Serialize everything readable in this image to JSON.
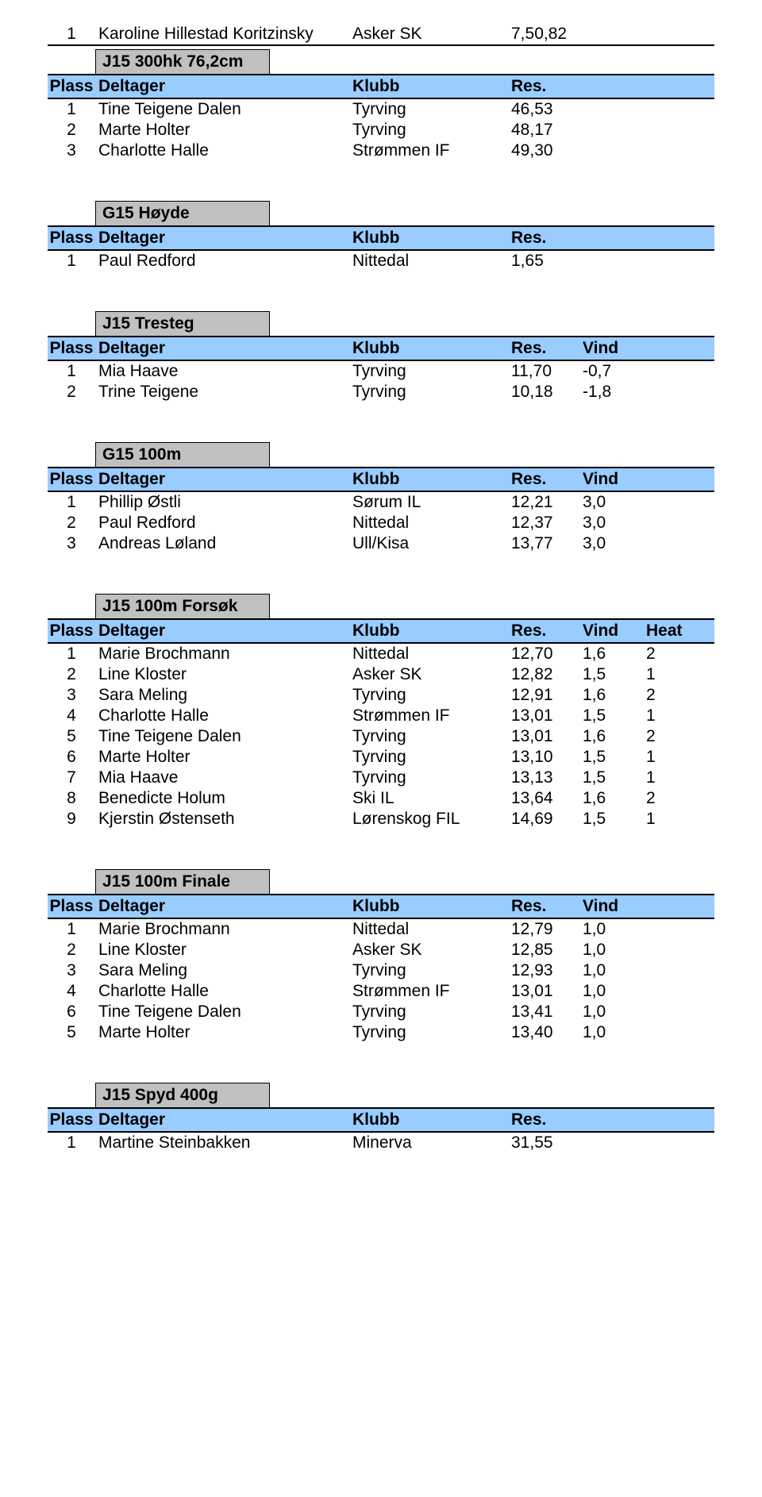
{
  "colors": {
    "header_bg": "#99ccff",
    "title_bg": "#c0c0c0",
    "border": "#000000",
    "text": "#000000",
    "page_bg": "#ffffff"
  },
  "font": {
    "family": "Arial",
    "size_pt": 16,
    "header_weight": "bold"
  },
  "labels": {
    "plass": "Plass",
    "deltager": "Deltager",
    "klubb": "Klubb",
    "res": "Res.",
    "vind": "Vind",
    "heat": "Heat"
  },
  "lone_row": {
    "plass": "1",
    "deltager": "Karoline Hillestad Koritzinsky",
    "klubb": "Asker SK",
    "res": "7,50,82"
  },
  "sections": [
    {
      "title": "J15 300hk 76,2cm",
      "columns": [
        "plass",
        "deltager",
        "klubb",
        "res"
      ],
      "rows": [
        {
          "plass": "1",
          "deltager": "Tine Teigene Dalen",
          "klubb": "Tyrving",
          "res": "46,53"
        },
        {
          "plass": "2",
          "deltager": "Marte Holter",
          "klubb": "Tyrving",
          "res": "48,17"
        },
        {
          "plass": "3",
          "deltager": "Charlotte Halle",
          "klubb": "Strømmen IF",
          "res": "49,30"
        }
      ]
    },
    {
      "title": "G15 Høyde",
      "columns": [
        "plass",
        "deltager",
        "klubb",
        "res"
      ],
      "rows": [
        {
          "plass": "1",
          "deltager": "Paul Redford",
          "klubb": "Nittedal",
          "res": "1,65"
        }
      ]
    },
    {
      "title": "J15 Tresteg",
      "columns": [
        "plass",
        "deltager",
        "klubb",
        "res",
        "vind"
      ],
      "rows": [
        {
          "plass": "1",
          "deltager": "Mia Haave",
          "klubb": "Tyrving",
          "res": "11,70",
          "vind": "-0,7"
        },
        {
          "plass": "2",
          "deltager": "Trine Teigene",
          "klubb": "Tyrving",
          "res": "10,18",
          "vind": "-1,8"
        }
      ]
    },
    {
      "title": "G15 100m",
      "columns": [
        "plass",
        "deltager",
        "klubb",
        "res",
        "vind"
      ],
      "rows": [
        {
          "plass": "1",
          "deltager": "Phillip Østli",
          "klubb": "Sørum IL",
          "res": "12,21",
          "vind": "3,0"
        },
        {
          "plass": "2",
          "deltager": "Paul Redford",
          "klubb": "Nittedal",
          "res": "12,37",
          "vind": "3,0"
        },
        {
          "plass": "3",
          "deltager": "Andreas Løland",
          "klubb": "Ull/Kisa",
          "res": "13,77",
          "vind": "3,0"
        }
      ]
    },
    {
      "title": "J15 100m Forsøk",
      "columns": [
        "plass",
        "deltager",
        "klubb",
        "res",
        "vind",
        "heat"
      ],
      "rows": [
        {
          "plass": "1",
          "deltager": "Marie Brochmann",
          "klubb": "Nittedal",
          "res": "12,70",
          "vind": "1,6",
          "heat": "2"
        },
        {
          "plass": "2",
          "deltager": "Line Kloster",
          "klubb": "Asker SK",
          "res": "12,82",
          "vind": "1,5",
          "heat": "1"
        },
        {
          "plass": "3",
          "deltager": "Sara Meling",
          "klubb": "Tyrving",
          "res": "12,91",
          "vind": "1,6",
          "heat": "2"
        },
        {
          "plass": "4",
          "deltager": "Charlotte Halle",
          "klubb": "Strømmen IF",
          "res": "13,01",
          "vind": "1,5",
          "heat": "1"
        },
        {
          "plass": "5",
          "deltager": "Tine Teigene Dalen",
          "klubb": "Tyrving",
          "res": "13,01",
          "vind": "1,6",
          "heat": "2"
        },
        {
          "plass": "6",
          "deltager": "Marte Holter",
          "klubb": "Tyrving",
          "res": "13,10",
          "vind": "1,5",
          "heat": "1"
        },
        {
          "plass": "7",
          "deltager": "Mia Haave",
          "klubb": "Tyrving",
          "res": "13,13",
          "vind": "1,5",
          "heat": "1"
        },
        {
          "plass": "8",
          "deltager": "Benedicte Holum",
          "klubb": "Ski IL",
          "res": "13,64",
          "vind": "1,6",
          "heat": "2"
        },
        {
          "plass": "9",
          "deltager": "Kjerstin Østenseth",
          "klubb": "Lørenskog FIL",
          "res": "14,69",
          "vind": "1,5",
          "heat": "1"
        }
      ]
    },
    {
      "title": "J15 100m Finale",
      "columns": [
        "plass",
        "deltager",
        "klubb",
        "res",
        "vind"
      ],
      "rows": [
        {
          "plass": "1",
          "deltager": "Marie Brochmann",
          "klubb": "Nittedal",
          "res": "12,79",
          "vind": "1,0"
        },
        {
          "plass": "2",
          "deltager": "Line Kloster",
          "klubb": "Asker SK",
          "res": "12,85",
          "vind": "1,0"
        },
        {
          "plass": "3",
          "deltager": "Sara Meling",
          "klubb": "Tyrving",
          "res": "12,93",
          "vind": "1,0"
        },
        {
          "plass": "4",
          "deltager": "Charlotte Halle",
          "klubb": "Strømmen IF",
          "res": "13,01",
          "vind": "1,0"
        },
        {
          "plass": "6",
          "deltager": "Tine Teigene Dalen",
          "klubb": "Tyrving",
          "res": "13,41",
          "vind": "1,0"
        },
        {
          "plass": "5",
          "deltager": "Marte Holter",
          "klubb": "Tyrving",
          "res": "13,40",
          "vind": "1,0"
        }
      ]
    },
    {
      "title": "J15 Spyd 400g",
      "columns": [
        "plass",
        "deltager",
        "klubb",
        "res"
      ],
      "rows": [
        {
          "plass": "1",
          "deltager": "Martine Steinbakken",
          "klubb": "Minerva",
          "res": "31,55"
        }
      ]
    }
  ]
}
